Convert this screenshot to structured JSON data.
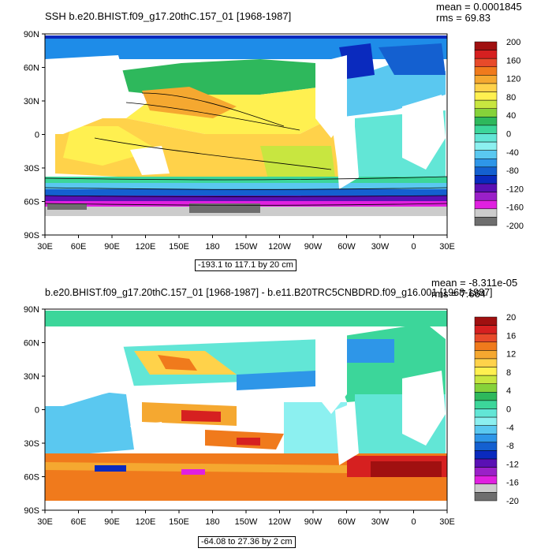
{
  "chart_data": [
    {
      "type": "heatmap",
      "title": "SSH b.e20.BHIST.f09_g17.20thC.157_01 [1968-1987]",
      "stats": {
        "mean": "mean = 0.0001845",
        "rms": "rms = 69.83"
      },
      "range_label": "-193.1 to 117.1 by 20 cm",
      "x_ticks": [
        "30E",
        "60E",
        "90E",
        "120E",
        "150E",
        "180",
        "150W",
        "120W",
        "90W",
        "60W",
        "30W",
        "0",
        "30E"
      ],
      "y_ticks": [
        "90N",
        "60N",
        "30N",
        "0",
        "30S",
        "60S",
        "90S"
      ],
      "colorbar": {
        "labels": [
          "200",
          "160",
          "120",
          "80",
          "40",
          "0",
          "-40",
          "-80",
          "-120",
          "-160",
          "-200"
        ],
        "colors": [
          "#A01010",
          "#D62020",
          "#E84A2A",
          "#F07A1C",
          "#F5A830",
          "#FFD24A",
          "#FFF050",
          "#C8E640",
          "#86D23A",
          "#2EB85C",
          "#3CD69A",
          "#62E6D6",
          "#8CF0F0",
          "#5AC8F0",
          "#2E96E8",
          "#1460D0",
          "#0A2ABE",
          "#5A10B4",
          "#9A20C8",
          "#E020E0",
          "#CCCCCC",
          "#6E6E6E"
        ]
      }
    },
    {
      "type": "heatmap",
      "title": "b.e20.BHIST.f09_g17.20thC.157_01 [1968-1987] - b.e11.B20TRC5CNBDRD.f09_g16.001 [1968-1987]",
      "stats": {
        "mean": "mean = -8.311e-05",
        "rms": "rms = 7.664"
      },
      "range_label": "-64.08 to 27.36 by 2 cm",
      "x_ticks": [
        "30E",
        "60E",
        "90E",
        "120E",
        "150E",
        "180",
        "150W",
        "120W",
        "90W",
        "60W",
        "30W",
        "0",
        "30E"
      ],
      "y_ticks": [
        "90N",
        "60N",
        "30N",
        "0",
        "30S",
        "60S",
        "90S"
      ],
      "colorbar": {
        "labels": [
          "20",
          "16",
          "12",
          "8",
          "4",
          "0",
          "-4",
          "-8",
          "-12",
          "-16",
          "-20"
        ],
        "colors": [
          "#A01010",
          "#D62020",
          "#E84A2A",
          "#F07A1C",
          "#F5A830",
          "#FFD24A",
          "#FFF050",
          "#C8E640",
          "#86D23A",
          "#2EB85C",
          "#3CD69A",
          "#62E6D6",
          "#8CF0F0",
          "#5AC8F0",
          "#2E96E8",
          "#1460D0",
          "#0A2ABE",
          "#5A10B4",
          "#9A20C8",
          "#E020E0",
          "#CCCCCC",
          "#6E6E6E"
        ]
      }
    }
  ]
}
